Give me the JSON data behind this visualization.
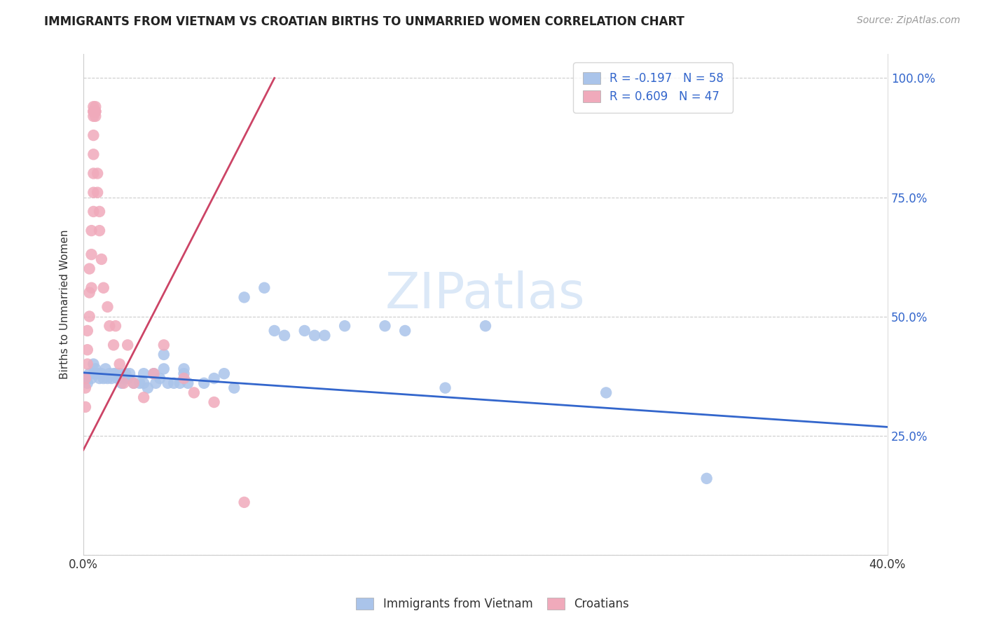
{
  "title": "IMMIGRANTS FROM VIETNAM VS CROATIAN BIRTHS TO UNMARRIED WOMEN CORRELATION CHART",
  "source": "Source: ZipAtlas.com",
  "ylabel": "Births to Unmarried Women",
  "xlim": [
    0.0,
    0.4
  ],
  "ylim": [
    0.0,
    1.05
  ],
  "legend_r1": "R = -0.197   N = 58",
  "legend_r2": "R = 0.609   N = 47",
  "legend_label1": "Immigrants from Vietnam",
  "legend_label2": "Croatians",
  "blue_color": "#aac4ea",
  "pink_color": "#f0aabb",
  "blue_line_color": "#3366cc",
  "pink_line_color": "#cc4466",
  "watermark_color": "#ccdff5",
  "scatter_blue": [
    [
      0.001,
      0.37
    ],
    [
      0.002,
      0.36
    ],
    [
      0.003,
      0.38
    ],
    [
      0.004,
      0.37
    ],
    [
      0.005,
      0.38
    ],
    [
      0.005,
      0.4
    ],
    [
      0.006,
      0.39
    ],
    [
      0.007,
      0.38
    ],
    [
      0.008,
      0.37
    ],
    [
      0.009,
      0.38
    ],
    [
      0.01,
      0.37
    ],
    [
      0.011,
      0.39
    ],
    [
      0.012,
      0.37
    ],
    [
      0.013,
      0.38
    ],
    [
      0.014,
      0.37
    ],
    [
      0.015,
      0.38
    ],
    [
      0.016,
      0.38
    ],
    [
      0.017,
      0.37
    ],
    [
      0.018,
      0.38
    ],
    [
      0.019,
      0.36
    ],
    [
      0.02,
      0.37
    ],
    [
      0.021,
      0.38
    ],
    [
      0.022,
      0.37
    ],
    [
      0.023,
      0.38
    ],
    [
      0.025,
      0.36
    ],
    [
      0.028,
      0.36
    ],
    [
      0.03,
      0.38
    ],
    [
      0.03,
      0.36
    ],
    [
      0.032,
      0.35
    ],
    [
      0.035,
      0.38
    ],
    [
      0.036,
      0.36
    ],
    [
      0.038,
      0.37
    ],
    [
      0.04,
      0.39
    ],
    [
      0.04,
      0.42
    ],
    [
      0.042,
      0.36
    ],
    [
      0.045,
      0.36
    ],
    [
      0.048,
      0.36
    ],
    [
      0.05,
      0.39
    ],
    [
      0.05,
      0.38
    ],
    [
      0.052,
      0.36
    ],
    [
      0.06,
      0.36
    ],
    [
      0.065,
      0.37
    ],
    [
      0.07,
      0.38
    ],
    [
      0.075,
      0.35
    ],
    [
      0.08,
      0.54
    ],
    [
      0.09,
      0.56
    ],
    [
      0.095,
      0.47
    ],
    [
      0.1,
      0.46
    ],
    [
      0.11,
      0.47
    ],
    [
      0.115,
      0.46
    ],
    [
      0.12,
      0.46
    ],
    [
      0.13,
      0.48
    ],
    [
      0.15,
      0.48
    ],
    [
      0.16,
      0.47
    ],
    [
      0.18,
      0.35
    ],
    [
      0.2,
      0.48
    ],
    [
      0.26,
      0.34
    ],
    [
      0.31,
      0.16
    ]
  ],
  "scatter_pink": [
    [
      0.001,
      0.31
    ],
    [
      0.001,
      0.35
    ],
    [
      0.001,
      0.37
    ],
    [
      0.002,
      0.4
    ],
    [
      0.002,
      0.43
    ],
    [
      0.002,
      0.47
    ],
    [
      0.003,
      0.5
    ],
    [
      0.003,
      0.55
    ],
    [
      0.003,
      0.6
    ],
    [
      0.004,
      0.56
    ],
    [
      0.004,
      0.63
    ],
    [
      0.004,
      0.68
    ],
    [
      0.005,
      0.72
    ],
    [
      0.005,
      0.76
    ],
    [
      0.005,
      0.8
    ],
    [
      0.005,
      0.84
    ],
    [
      0.005,
      0.88
    ],
    [
      0.005,
      0.92
    ],
    [
      0.005,
      0.93
    ],
    [
      0.005,
      0.94
    ],
    [
      0.005,
      0.93
    ],
    [
      0.006,
      0.92
    ],
    [
      0.006,
      0.93
    ],
    [
      0.006,
      0.94
    ],
    [
      0.006,
      0.93
    ],
    [
      0.006,
      0.93
    ],
    [
      0.007,
      0.76
    ],
    [
      0.007,
      0.8
    ],
    [
      0.008,
      0.68
    ],
    [
      0.008,
      0.72
    ],
    [
      0.009,
      0.62
    ],
    [
      0.01,
      0.56
    ],
    [
      0.012,
      0.52
    ],
    [
      0.013,
      0.48
    ],
    [
      0.015,
      0.44
    ],
    [
      0.016,
      0.48
    ],
    [
      0.018,
      0.4
    ],
    [
      0.02,
      0.36
    ],
    [
      0.022,
      0.44
    ],
    [
      0.025,
      0.36
    ],
    [
      0.03,
      0.33
    ],
    [
      0.035,
      0.38
    ],
    [
      0.04,
      0.44
    ],
    [
      0.05,
      0.37
    ],
    [
      0.055,
      0.34
    ],
    [
      0.065,
      0.32
    ],
    [
      0.08,
      0.11
    ]
  ],
  "blue_line": [
    [
      0.0,
      0.382
    ],
    [
      0.4,
      0.268
    ]
  ],
  "pink_line": [
    [
      0.0,
      0.22
    ],
    [
      0.095,
      1.0
    ]
  ]
}
